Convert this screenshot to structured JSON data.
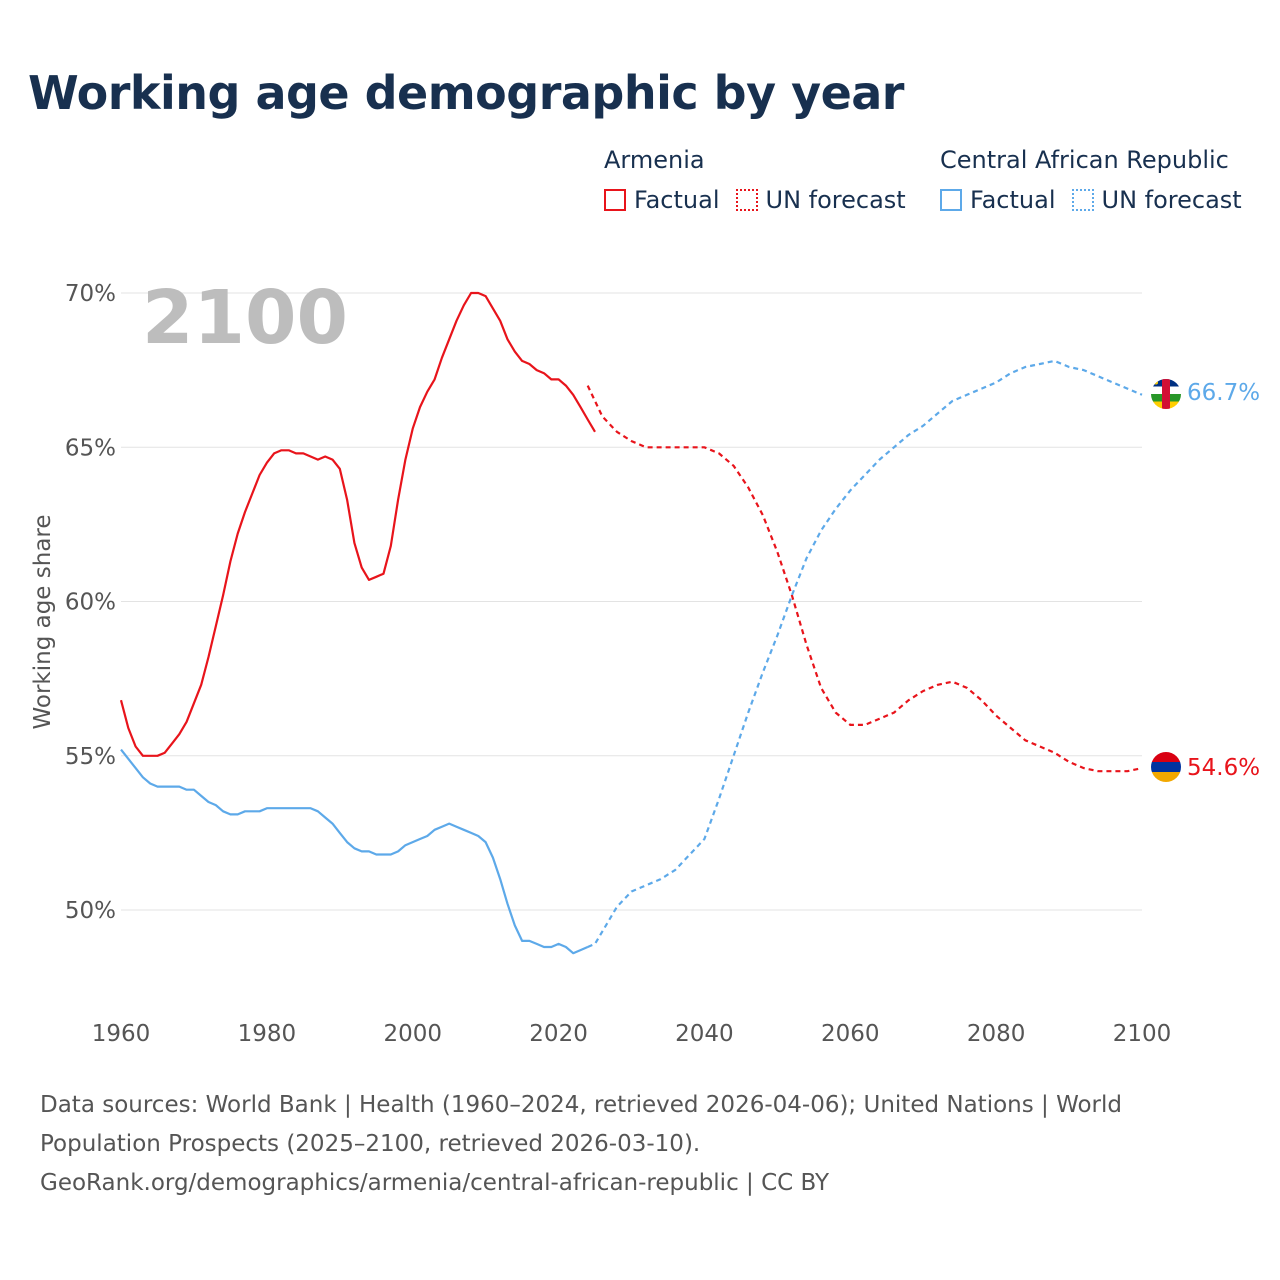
{
  "title": "Working age demographic by year",
  "legend": {
    "groups": [
      {
        "name": "Armenia",
        "color": "#e8141b",
        "items": [
          {
            "label": "Factual",
            "style": "solid"
          },
          {
            "label": "UN forecast",
            "style": "dotted"
          }
        ]
      },
      {
        "name": "Central African Republic",
        "color": "#5da9e9",
        "items": [
          {
            "label": "Factual",
            "style": "solid"
          },
          {
            "label": "UN forecast",
            "style": "dotted"
          }
        ]
      }
    ]
  },
  "year_watermark": "2100",
  "footer": {
    "sources": "Data sources: World Bank | Health (1960–2024, retrieved 2026-04-06); United Nations | World Population Prospects (2025–2100, retrieved 2026-03-10).",
    "attribution": "GeoRank.org/demographics/armenia/central-african-republic | CC BY"
  },
  "chart_data": {
    "type": "line",
    "title": "Working age demographic by year",
    "xlabel": "",
    "ylabel": "Working age share",
    "xlim": [
      1960,
      2100
    ],
    "ylim": [
      47.5,
      70.5
    ],
    "x_ticks": [
      1960,
      1980,
      2000,
      2020,
      2040,
      2060,
      2080,
      2100
    ],
    "y_ticks": [
      50,
      55,
      60,
      65,
      70
    ],
    "y_tick_labels": [
      "50%",
      "55%",
      "60%",
      "65%",
      "70%"
    ],
    "grid": true,
    "series": [
      {
        "name": "Armenia",
        "color": "#e8141b",
        "end_label": "54.6%",
        "icon": "armenia-flag-icon",
        "factual": {
          "x": [
            1960,
            1961,
            1962,
            1963,
            1964,
            1965,
            1966,
            1967,
            1968,
            1969,
            1970,
            1971,
            1972,
            1973,
            1974,
            1975,
            1976,
            1977,
            1978,
            1979,
            1980,
            1981,
            1982,
            1983,
            1984,
            1985,
            1986,
            1987,
            1988,
            1989,
            1990,
            1991,
            1992,
            1993,
            1994,
            1995,
            1996,
            1997,
            1998,
            1999,
            2000,
            2001,
            2002,
            2003,
            2004,
            2005,
            2006,
            2007,
            2008,
            2009,
            2010,
            2011,
            2012,
            2013,
            2014,
            2015,
            2016,
            2017,
            2018,
            2019,
            2020,
            2021,
            2022,
            2023,
            2024,
            2025
          ],
          "y": [
            56.8,
            55.9,
            55.3,
            55.0,
            55.0,
            55.0,
            55.1,
            55.4,
            55.7,
            56.1,
            56.7,
            57.3,
            58.2,
            59.2,
            60.2,
            61.3,
            62.2,
            62.9,
            63.5,
            64.1,
            64.5,
            64.8,
            64.9,
            64.9,
            64.8,
            64.8,
            64.7,
            64.6,
            64.7,
            64.6,
            64.3,
            63.3,
            61.9,
            61.1,
            60.7,
            60.8,
            60.9,
            61.8,
            63.3,
            64.6,
            65.6,
            66.3,
            66.8,
            67.2,
            67.9,
            68.5,
            69.1,
            69.6,
            70.0,
            70.0,
            69.9,
            69.5,
            69.1,
            68.5,
            68.1,
            67.8,
            67.7,
            67.5,
            67.4,
            67.2,
            67.2,
            67.0,
            66.7,
            66.3,
            65.9,
            65.5
          ],
          "style": "solid",
          "note": "x values trimmed to match y"
        },
        "forecast": {
          "x": [
            2024,
            2026,
            2028,
            2030,
            2032,
            2034,
            2036,
            2038,
            2040,
            2042,
            2044,
            2046,
            2048,
            2050,
            2052,
            2054,
            2056,
            2058,
            2060,
            2062,
            2064,
            2066,
            2068,
            2070,
            2072,
            2074,
            2076,
            2078,
            2080,
            2082,
            2084,
            2086,
            2088,
            2090,
            2092,
            2094,
            2096,
            2098,
            2100
          ],
          "y": [
            67.0,
            66.0,
            65.5,
            65.2,
            65.0,
            65.0,
            65.0,
            65.0,
            65.0,
            64.8,
            64.4,
            63.7,
            62.8,
            61.6,
            60.2,
            58.6,
            57.2,
            56.4,
            56.0,
            56.0,
            56.2,
            56.4,
            56.8,
            57.1,
            57.3,
            57.4,
            57.2,
            56.8,
            56.3,
            55.9,
            55.5,
            55.3,
            55.1,
            54.8,
            54.6,
            54.5,
            54.5,
            54.5,
            54.6
          ],
          "style": "dashed"
        }
      },
      {
        "name": "Central African Republic",
        "color": "#5da9e9",
        "end_label": "66.7%",
        "icon": "central-african-republic-flag-icon",
        "factual": {
          "x": [
            1960,
            1961,
            1962,
            1963,
            1964,
            1965,
            1966,
            1967,
            1968,
            1969,
            1970,
            1971,
            1972,
            1973,
            1974,
            1975,
            1976,
            1977,
            1978,
            1979,
            1980,
            1981,
            1982,
            1983,
            1984,
            1985,
            1986,
            1987,
            1988,
            1989,
            1990,
            1991,
            1992,
            1993,
            1994,
            1995,
            1996,
            1997,
            1998,
            1999,
            2000,
            2001,
            2002,
            2003,
            2004,
            2005,
            2006,
            2007,
            2008,
            2009,
            2010,
            2011,
            2012,
            2013,
            2014,
            2015,
            2016,
            2017,
            2018,
            2019,
            2020,
            2021,
            2022,
            2023,
            2024
          ],
          "y": [
            55.2,
            54.9,
            54.6,
            54.3,
            54.1,
            54.0,
            54.0,
            54.0,
            54.0,
            53.9,
            53.9,
            53.7,
            53.5,
            53.4,
            53.2,
            53.1,
            53.1,
            53.2,
            53.2,
            53.2,
            53.3,
            53.3,
            53.3,
            53.3,
            53.3,
            53.3,
            53.3,
            53.2,
            53.0,
            52.8,
            52.5,
            52.2,
            52.0,
            51.9,
            51.9,
            51.8,
            51.8,
            51.8,
            51.9,
            52.1,
            52.2,
            52.3,
            52.4,
            52.6,
            52.7,
            52.8,
            52.7,
            52.6,
            52.5,
            52.4,
            52.2,
            51.7,
            51.0,
            50.2,
            49.5,
            49.0,
            49.0,
            48.9,
            48.8,
            48.8,
            48.9,
            48.8,
            48.6,
            48.7,
            48.8
          ],
          "style": "solid"
        },
        "forecast": {
          "x": [
            2024,
            2025,
            2026,
            2028,
            2030,
            2032,
            2034,
            2036,
            2038,
            2040,
            2042,
            2044,
            2046,
            2048,
            2050,
            2052,
            2054,
            2056,
            2058,
            2060,
            2062,
            2064,
            2066,
            2068,
            2070,
            2072,
            2074,
            2076,
            2078,
            2080,
            2082,
            2084,
            2086,
            2088,
            2090,
            2092,
            2094,
            2096,
            2098,
            2100
          ],
          "y": [
            48.8,
            48.9,
            49.3,
            50.1,
            50.6,
            50.8,
            51.0,
            51.3,
            51.8,
            52.3,
            53.6,
            55.0,
            56.4,
            57.7,
            58.9,
            60.2,
            61.4,
            62.3,
            63.0,
            63.6,
            64.1,
            64.6,
            65.0,
            65.4,
            65.7,
            66.1,
            66.5,
            66.7,
            66.9,
            67.1,
            67.4,
            67.6,
            67.7,
            67.8,
            67.6,
            67.5,
            67.3,
            67.1,
            66.9,
            66.7
          ],
          "style": "dashed"
        }
      }
    ]
  }
}
